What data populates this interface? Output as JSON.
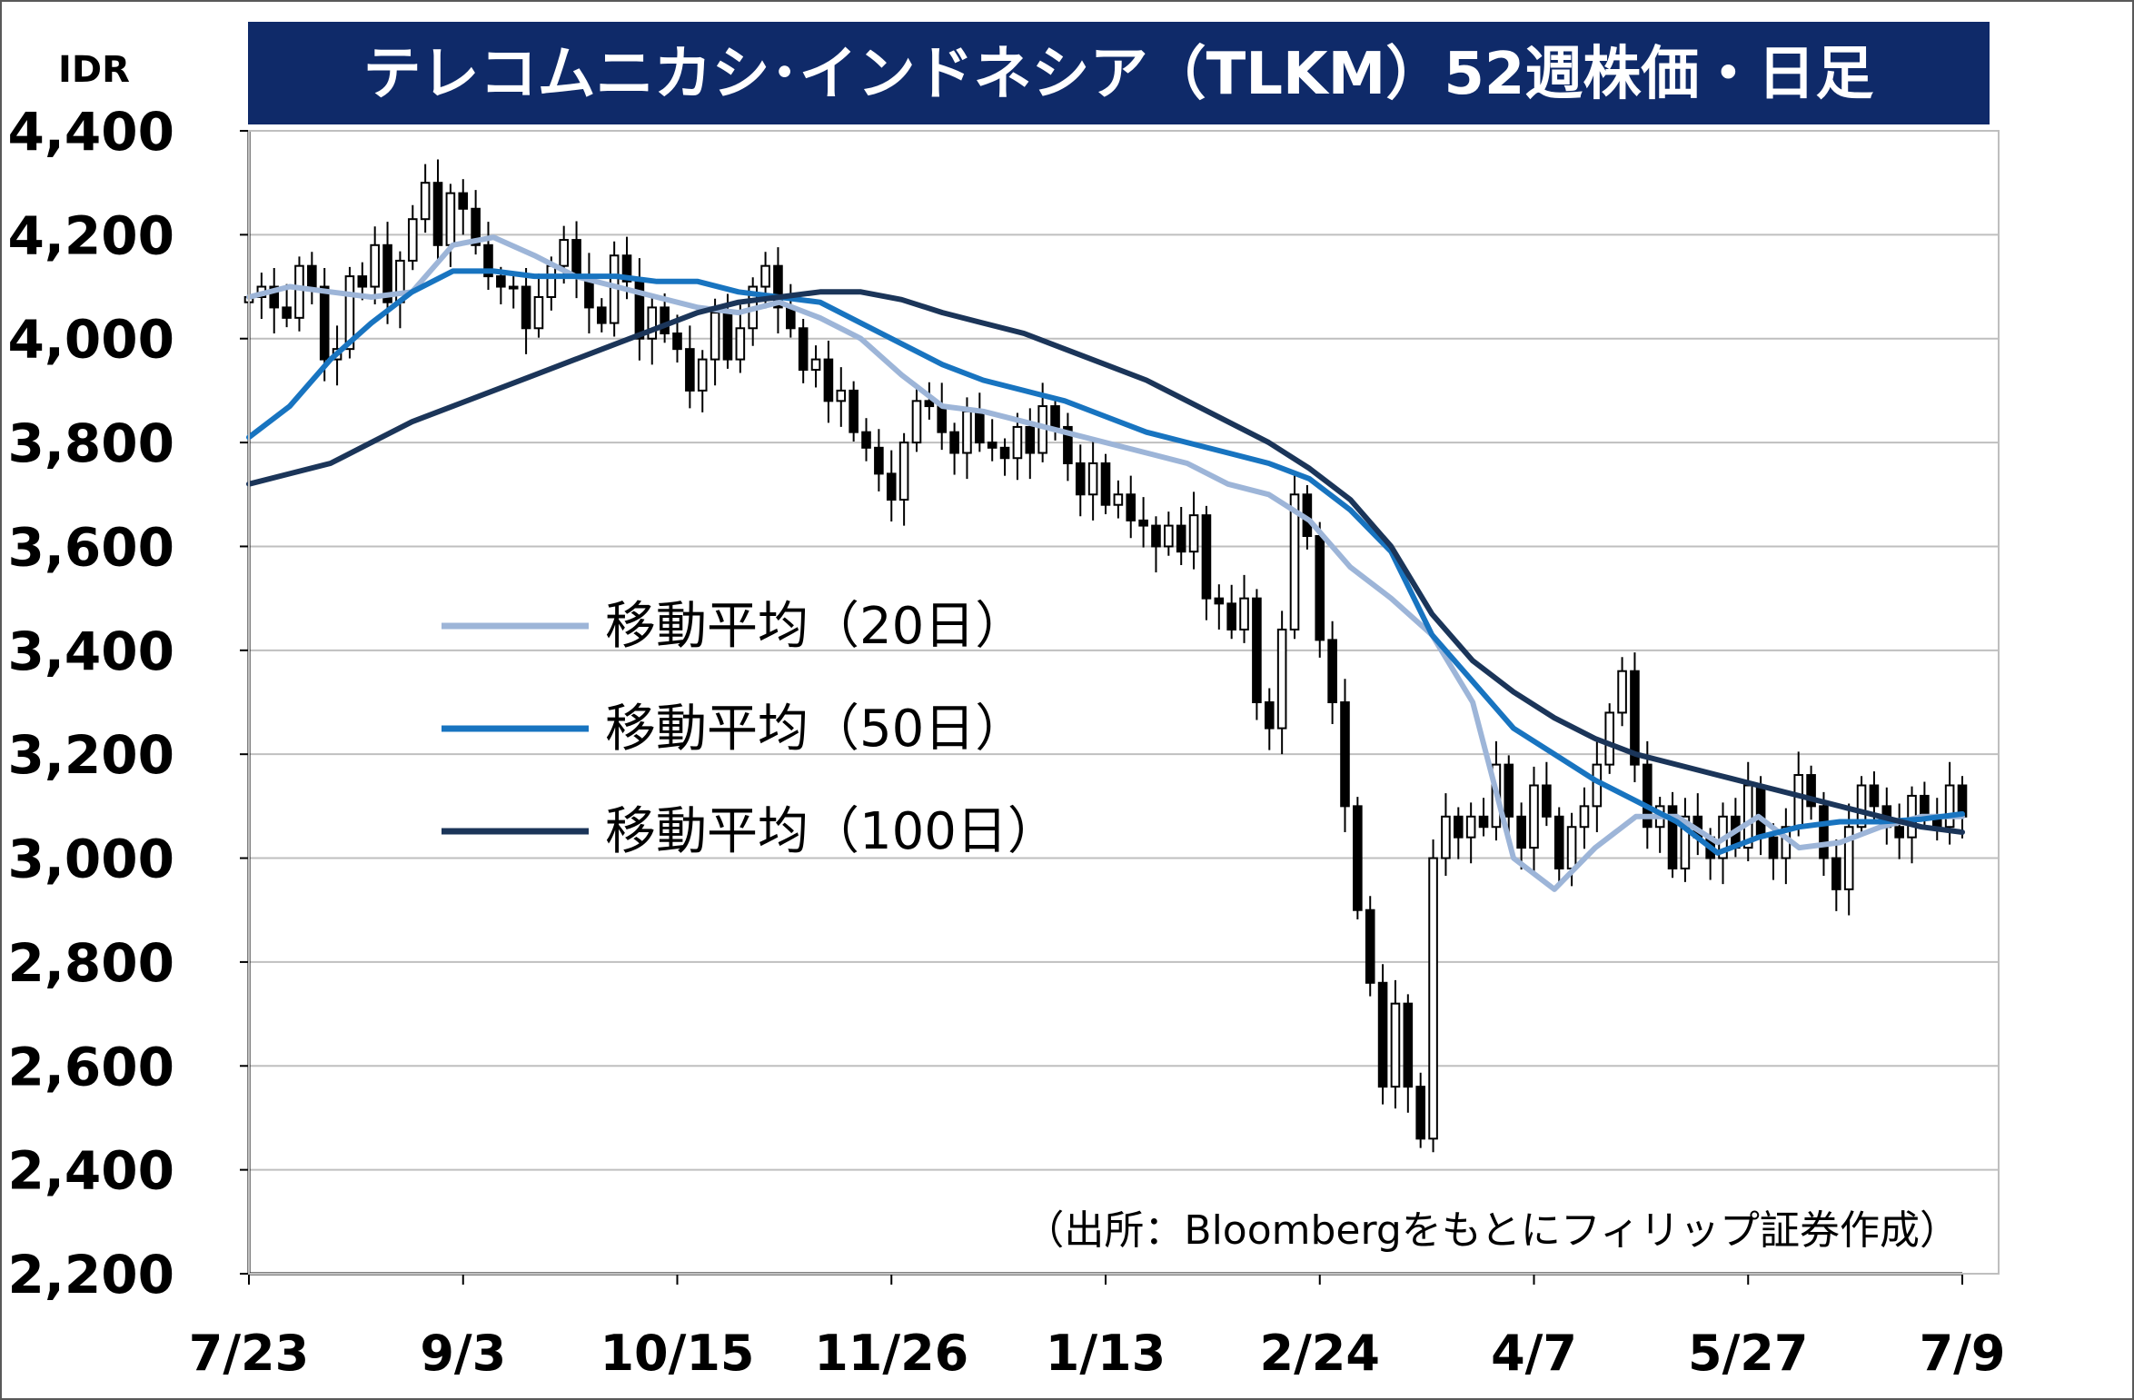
{
  "chart_data": {
    "type": "candlestick",
    "title": "テレコムニカシ･インドネシア（TLKM）52週株価・日足",
    "ylabel": "IDR",
    "ylim": [
      2200,
      4400
    ],
    "y_ticks": [
      "4,400",
      "4,200",
      "4,000",
      "3,800",
      "3,600",
      "3,400",
      "3,200",
      "3,000",
      "2,800",
      "2,600",
      "2,400",
      "2,200"
    ],
    "x_tick_labels": [
      "7/23",
      "9/3",
      "10/15",
      "11/26",
      "1/13",
      "2/24",
      "4/7",
      "5/27",
      "7/9"
    ],
    "grid": true,
    "source": "（出所：Bloombergをもとにフィリップ証券作成）",
    "legend": [
      {
        "label": "移動平均（20日）",
        "color": "#9DB5D8"
      },
      {
        "label": "移動平均（50日）",
        "color": "#1874C0"
      },
      {
        "label": "移動平均（100日）",
        "color": "#1B3559"
      }
    ],
    "series": [
      {
        "name": "移動平均（20日）",
        "color": "#9DB5D8",
        "values": [
          4080,
          4100,
          4090,
          4080,
          4090,
          4180,
          4195,
          4160,
          4120,
          4100,
          4080,
          4060,
          4050,
          4070,
          4040,
          4000,
          3930,
          3870,
          3860,
          3840,
          3820,
          3800,
          3780,
          3760,
          3720,
          3700,
          3650,
          3560,
          3500,
          3430,
          3300,
          3000,
          2940,
          3020,
          3080,
          3080,
          3030,
          3080,
          3020,
          3030,
          3060,
          3080,
          3080
        ]
      },
      {
        "name": "移動平均（50日）",
        "color": "#1874C0",
        "values": [
          3810,
          3870,
          3960,
          4030,
          4090,
          4130,
          4130,
          4120,
          4120,
          4120,
          4110,
          4110,
          4090,
          4080,
          4070,
          4030,
          3990,
          3950,
          3920,
          3900,
          3880,
          3850,
          3820,
          3800,
          3780,
          3760,
          3730,
          3670,
          3590,
          3430,
          3340,
          3250,
          3200,
          3150,
          3110,
          3070,
          3010,
          3040,
          3060,
          3070,
          3070,
          3075,
          3085
        ]
      },
      {
        "name": "移動平均（100日）",
        "color": "#1B3559",
        "values": [
          3720,
          3740,
          3760,
          3800,
          3840,
          3870,
          3900,
          3930,
          3960,
          3990,
          4020,
          4050,
          4070,
          4080,
          4090,
          4090,
          4075,
          4050,
          4030,
          4010,
          3980,
          3950,
          3920,
          3880,
          3840,
          3800,
          3750,
          3690,
          3600,
          3470,
          3380,
          3320,
          3270,
          3230,
          3200,
          3180,
          3160,
          3140,
          3120,
          3100,
          3080,
          3060,
          3050
        ]
      }
    ],
    "daily": {
      "name": "日足",
      "close": [
        4080,
        4100,
        4060,
        4040,
        4140,
        4100,
        3960,
        3980,
        4120,
        4100,
        4180,
        4070,
        4150,
        4230,
        4300,
        4180,
        4280,
        4250,
        4180,
        4120,
        4100,
        4100,
        4020,
        4080,
        4140,
        4190,
        4120,
        4060,
        4030,
        4160,
        4110,
        4000,
        4060,
        4010,
        3980,
        3900,
        3960,
        4050,
        3960,
        4020,
        4100,
        4140,
        4060,
        4020,
        3940,
        3960,
        3880,
        3900,
        3820,
        3790,
        3740,
        3690,
        3800,
        3880,
        3870,
        3820,
        3780,
        3860,
        3800,
        3790,
        3770,
        3830,
        3780,
        3870,
        3830,
        3760,
        3700,
        3760,
        3680,
        3700,
        3650,
        3640,
        3600,
        3640,
        3590,
        3660,
        3500,
        3490,
        3440,
        3500,
        3300,
        3250,
        3440,
        3700,
        3620,
        3420,
        3300,
        3100,
        2900,
        2760,
        2560,
        2720,
        2560,
        2460,
        3000,
        3080,
        3040,
        3080,
        3060,
        3180,
        3080,
        3020,
        3140,
        3080,
        2980,
        3060,
        3100,
        3180,
        3280,
        3360,
        3180,
        3060,
        3100,
        2980,
        3080,
        3040,
        3000,
        3080,
        3020,
        3140,
        3040,
        3000,
        3060,
        3160,
        3100,
        3000,
        2940,
        3060,
        3140,
        3100,
        3060,
        3040,
        3120,
        3080,
        3060,
        3140,
        3080
      ]
    }
  }
}
